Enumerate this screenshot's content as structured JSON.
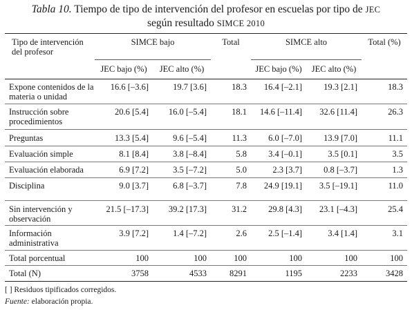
{
  "caption": {
    "label": "Tabla 10.",
    "title": "Tiempo de tipo de intervención del profesor en escuelas por tipo de ",
    "jec": "JEC",
    "line2": "según resultado ",
    "simce": "SIMCE 2010"
  },
  "headers": {
    "col0": "Tipo de intervención del profesor",
    "simce_bajo": "SIMCE bajo",
    "total": "Total",
    "simce_alto": "SIMCE alto",
    "total_pct": "Total (%)",
    "jec_bajo": "JEC bajo (%)",
    "jec_alto": "JEC alto (%)"
  },
  "rows": [
    {
      "label": "Expone contenidos de la materia o unidad",
      "c1": "16.6 [–3.6]",
      "c2": "19.7 [3.6]",
      "c3": "18.3",
      "c4": "16.4 [–2.1]",
      "c5": "19.3 [2.1]",
      "c6": "18.3"
    },
    {
      "label": "Instrucción sobre procedimientos",
      "c1": "20.6 [5.4]",
      "c2": "16.0 [–5.4]",
      "c3": "18.1",
      "c4": "14.6 [–11.4]",
      "c5": "32.6 [11.4]",
      "c6": "26.3"
    },
    {
      "label": "Preguntas",
      "c1": "13.3 [5.4]",
      "c2": "9.6 [–5.4]",
      "c3": "11.3",
      "c4": "6.0 [–7.0]",
      "c5": "13.9 [7.0]",
      "c6": "11.1"
    },
    {
      "label": "Evaluación simple",
      "c1": "8.1 [8.4]",
      "c2": "3.8 [–8.4]",
      "c3": "5.8",
      "c4": "3.4 [–0.1]",
      "c5": "3.5 [0.1]",
      "c6": "3.5"
    },
    {
      "label": "Evaluación elaborada",
      "c1": "6.9 [7.2]",
      "c2": "3.5 [–7.2]",
      "c3": "5.0",
      "c4": "2.3 [3.7]",
      "c5": "0.8 [–3.7]",
      "c6": "1.3"
    },
    {
      "label": "Disciplina",
      "c1": "9.0 [3.7]",
      "c2": "6.8 [–3.7]",
      "c3": "7.8",
      "c4": "24.9 [19.1]",
      "c5": "3.5 [–19.1]",
      "c6": "11.0"
    },
    {
      "label": "Sin intervención y observación",
      "c1": "21.5 [–17.3]",
      "c2": "39.2 [17.3]",
      "c3": "31.2",
      "c4": "29.8 [4.3]",
      "c5": "23.1 [–4.3]",
      "c6": "25.4"
    },
    {
      "label": "Información administrativa",
      "c1": "3.9 [7.2]",
      "c2": "1.4 [–7.2]",
      "c3": "2.6",
      "c4": "2.5 [–1.4]",
      "c5": "3.4 [1.4]",
      "c6": "3.1"
    },
    {
      "label": "Total porcentual",
      "c1": "100",
      "c2": "100",
      "c3": "100",
      "c4": "100",
      "c5": "100",
      "c6": "100"
    },
    {
      "label": "Total (N)",
      "c1": "3758",
      "c2": "4533",
      "c3": "8291",
      "c4": "1195",
      "c5": "2233",
      "c6": "3428"
    }
  ],
  "footnotes": {
    "note1": "[ ] Residuos tipificados corregidos.",
    "source_label": "Fuente:",
    "source_text": " elaboración propia."
  }
}
